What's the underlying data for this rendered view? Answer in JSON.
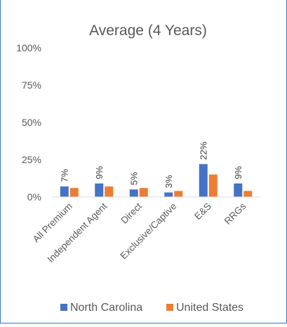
{
  "chart_data": {
    "type": "bar",
    "title": "Average (4 Years)",
    "categories": [
      "All Premium",
      "Independent Agent",
      "Direct",
      "Exclusive/Captive",
      "E&S",
      "RRGs"
    ],
    "series": [
      {
        "name": "North Carolina",
        "values": [
          7,
          9,
          5,
          3,
          22,
          9
        ],
        "data_labels": [
          "7%",
          "9%",
          "5%",
          "3%",
          "22%",
          "9%"
        ]
      },
      {
        "name": "United States",
        "values": [
          6,
          7,
          6,
          4,
          15,
          4
        ]
      }
    ],
    "ylim": [
      0,
      100
    ],
    "ytick_values": [
      0,
      25,
      50,
      75,
      100
    ],
    "ytick_labels": [
      "0%",
      "25%",
      "50%",
      "75%",
      "100%"
    ],
    "grid": false,
    "legend_position": "bottom",
    "colors": {
      "north_carolina": "#4472c4",
      "united_states": "#ed7d31",
      "text": "#595959",
      "axis": "#d9d9d9",
      "frame": "#3b73c2"
    }
  }
}
